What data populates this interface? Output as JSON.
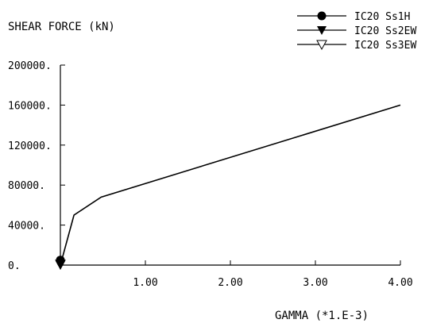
{
  "chart_data": {
    "type": "line",
    "ylabel": "SHEAR FORCE (kN)",
    "xlabel": "GAMMA (*1.E-3)",
    "xlim": [
      0,
      4.0
    ],
    "ylim": [
      0,
      200000
    ],
    "x_ticks": [
      1.0,
      2.0,
      3.0,
      4.0
    ],
    "x_tick_labels": [
      "1.00",
      "2.00",
      "3.00",
      "4.00"
    ],
    "y_ticks": [
      0,
      40000,
      80000,
      120000,
      160000,
      200000
    ],
    "y_tick_labels": [
      "0.",
      "40000.",
      "80000.",
      "120000.",
      "160000.",
      "200000."
    ],
    "legend_position": "top-right",
    "skeleton": {
      "x": [
        0,
        0.16,
        0.48,
        4.0
      ],
      "y": [
        0,
        50000,
        68000,
        160000
      ]
    },
    "series": [
      {
        "name": "IC20 Ss1H",
        "marker": "filled-circle",
        "x": [
          0.0
        ],
        "y": [
          5000
        ]
      },
      {
        "name": "IC20 Ss2EW",
        "marker": "filled-triangle-down",
        "x": [
          0.0
        ],
        "y": [
          0
        ]
      },
      {
        "name": "IC20 Ss3EW",
        "marker": "open-triangle-down",
        "x": [
          0.0
        ],
        "y": [
          1000
        ]
      }
    ],
    "colors": {
      "line": "#000000",
      "axis": "#000000"
    }
  }
}
